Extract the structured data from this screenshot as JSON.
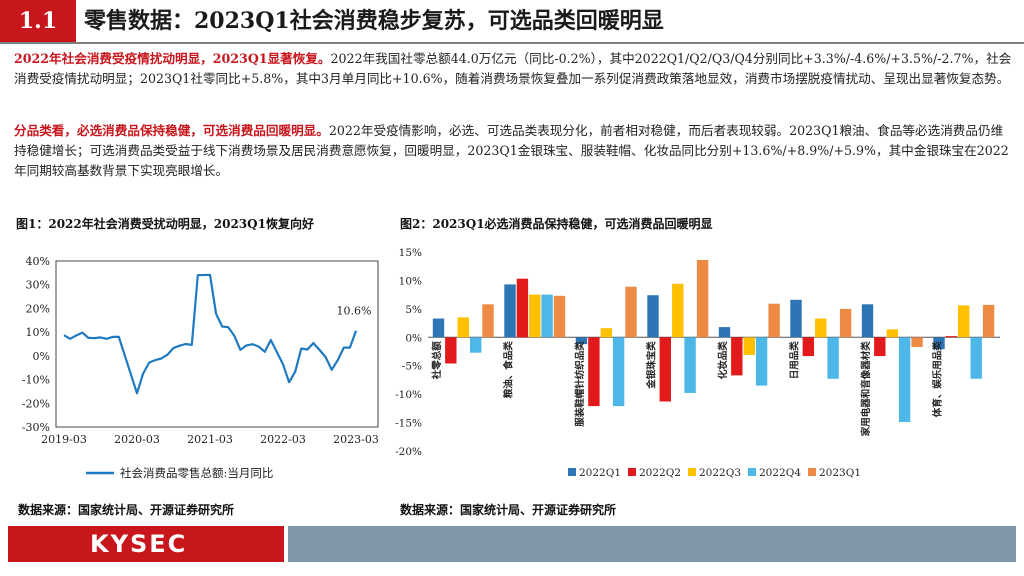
{
  "header": {
    "section_number": "1.1",
    "title": "零售数据：2023Q1社会消费稳步复苏，可选品类回暖明显"
  },
  "paragraphs": [
    {
      "highlight": "2022年社会消费受疫情扰动明显，2023Q1显著恢复。",
      "body": "2022年我国社零总额44.0万亿元（同比-0.2%），其中2022Q1/Q2/Q3/Q4分别同比+3.3%/-4.6%/+3.5%/-2.7%，社会消费受疫情扰动明显；2023Q1社零同比+5.8%，其中3月单月同比+10.6%，随着消费场景恢复叠加一系列促消费政策落地显效，消费市场摆脱疫情扰动、呈现出显著恢复态势。"
    },
    {
      "highlight": "分品类看，必选消费品保持稳健，可选消费品回暖明显。",
      "body": "2022年受疫情影响，必选、可选品类表现分化，前者相对稳健，而后者表现较弱。2023Q1粮油、食品等必选消费品仍维持稳健增长；可选消费品类受益于线下消费场景及居民消费意愿恢复，回暖明显，2023Q1金银珠宝、服装鞋帽、化妆品同比分别+13.6%/+8.9%/+5.9%，其中金银珠宝在2022年同期较高基数背景下实现亮眼增长。"
    }
  ],
  "figures": {
    "fig1_title": "图1：2022年社会消费受扰动明显，2023Q1恢复向好",
    "fig2_title": "图2：2023Q1必选消费品保持稳健，可选消费品回暖明显",
    "source1": "数据来源：国家统计局、开源证券研究所",
    "source2": "数据来源：国家统计局、开源证券研究所"
  },
  "footer": {
    "logo_text": "KYSEC"
  },
  "colors": {
    "brand_red": "#c8161d",
    "line_blue": "#1f7ac0",
    "q1_2022": "#2e75b6",
    "q2_2022": "#e31a1c",
    "q3_2022": "#ffc000",
    "q4_2022": "#4db8e8",
    "q1_2023": "#ed8b44"
  },
  "chart_data": [
    {
      "type": "line",
      "title": "图1：2022年社会消费受扰动明显，2023Q1恢复向好",
      "x_ticks": [
        "2019-03",
        "2020-03",
        "2021-03",
        "2022-03",
        "2023-03"
      ],
      "y_ticks": [
        "40%",
        "30%",
        "20%",
        "10%",
        "0%",
        "-10%",
        "-20%",
        "-30%"
      ],
      "ylim": [
        -30,
        40
      ],
      "annotation": "10.6%",
      "series": [
        {
          "name": "社会消费品零售总额:当月同比",
          "x": [
            "2019-03",
            "2019-04",
            "2019-05",
            "2019-06",
            "2019-07",
            "2019-08",
            "2019-09",
            "2019-10",
            "2019-11",
            "2019-12",
            "2020-03",
            "2020-04",
            "2020-05",
            "2020-06",
            "2020-07",
            "2020-08",
            "2020-09",
            "2020-10",
            "2020-11",
            "2020-12",
            "2021-01",
            "2021-03",
            "2021-04",
            "2021-05",
            "2021-06",
            "2021-07",
            "2021-08",
            "2021-09",
            "2021-10",
            "2021-11",
            "2021-12",
            "2022-01",
            "2022-03",
            "2022-04",
            "2022-05",
            "2022-06",
            "2022-07",
            "2022-08",
            "2022-09",
            "2022-10",
            "2022-11",
            "2022-12",
            "2023-01",
            "2023-02",
            "2023-03"
          ],
          "values": [
            8.7,
            7.2,
            8.6,
            9.8,
            7.6,
            7.5,
            7.8,
            7.2,
            8.0,
            8.0,
            -15.8,
            -7.5,
            -2.8,
            -1.8,
            -1.1,
            0.5,
            3.3,
            4.3,
            5.0,
            4.6,
            34.0,
            34.2,
            17.7,
            12.4,
            12.1,
            8.5,
            2.5,
            4.4,
            4.9,
            3.9,
            1.7,
            6.7,
            -3.5,
            -11.1,
            -6.7,
            3.1,
            2.7,
            5.4,
            2.5,
            -0.5,
            -5.9,
            -1.8,
            3.5,
            3.5,
            10.6
          ]
        }
      ]
    },
    {
      "type": "bar",
      "title": "图2：2023Q1必选消费品保持稳健，可选消费品回暖明显",
      "categories": [
        "社零总额",
        "粮油、食品类",
        "服装鞋帽针纺织品类",
        "金银珠宝类",
        "化妆品类",
        "日用品类",
        "家用电器和音像器材类",
        "体育、娱乐用品类"
      ],
      "y_ticks": [
        "15%",
        "10%",
        "5%",
        "0%",
        "-5%",
        "-10%",
        "-15%",
        "-20%"
      ],
      "ylim": [
        -20,
        15
      ],
      "series": [
        {
          "name": "2022Q1",
          "values": [
            3.3,
            9.3,
            -1.2,
            7.4,
            1.8,
            6.6,
            5.8,
            -2.1
          ]
        },
        {
          "name": "2022Q2",
          "values": [
            -4.6,
            10.3,
            -12.1,
            -11.3,
            -6.7,
            -3.3,
            -3.3,
            0.2
          ]
        },
        {
          "name": "2022Q3",
          "values": [
            3.5,
            7.5,
            1.6,
            9.4,
            -3.1,
            3.3,
            1.4,
            5.6
          ]
        },
        {
          "name": "2022Q4",
          "values": [
            -2.7,
            7.5,
            -12.1,
            -9.8,
            -8.5,
            -7.3,
            -14.9,
            -7.3
          ]
        },
        {
          "name": "2023Q1",
          "values": [
            5.8,
            7.3,
            8.9,
            13.6,
            5.9,
            5.0,
            -1.7,
            5.7
          ]
        }
      ]
    }
  ]
}
